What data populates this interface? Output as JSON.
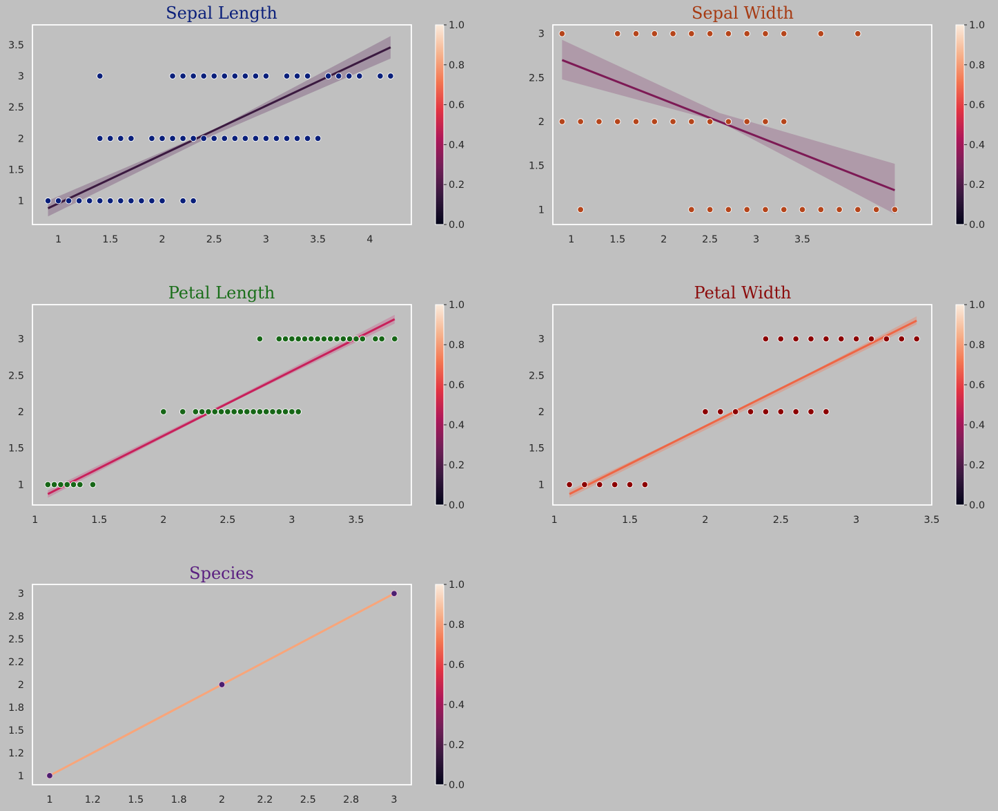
{
  "colors": {
    "background": "#c0c0c0",
    "axes_frame": "#ffffff",
    "colormap": "rocket",
    "colormap_stops": [
      "#03051a",
      "#36193e",
      "#701f57",
      "#ad1759",
      "#e13342",
      "#f37651",
      "#f6b48f",
      "#faebdd"
    ]
  },
  "chart_data": [
    {
      "type": "scatter",
      "title": "Sepal Length",
      "title_color": "#0a1f7a",
      "point_color": "#0a1f7a",
      "line_color": "#3b1a40",
      "band_color": "#8a6e8a",
      "xlim": [
        0.75,
        4.4
      ],
      "ylim": [
        0.62,
        3.82
      ],
      "xticks": [
        1,
        1.5,
        2,
        2.5,
        3,
        3.5,
        4
      ],
      "xtick_labels": [
        "1",
        "1.5",
        "2",
        "2.5",
        "3",
        "3.5",
        "4"
      ],
      "yticks": [
        1,
        1.5,
        2,
        2.5,
        3,
        3.5
      ],
      "ytick_labels": [
        "1",
        "1.5",
        "2",
        "2.5",
        "3",
        "3.5"
      ],
      "points": [
        [
          0.9,
          1
        ],
        [
          1.0,
          1
        ],
        [
          1.1,
          1
        ],
        [
          1.2,
          1
        ],
        [
          1.3,
          1
        ],
        [
          1.4,
          1
        ],
        [
          1.5,
          1
        ],
        [
          1.6,
          1
        ],
        [
          1.7,
          1
        ],
        [
          1.8,
          1
        ],
        [
          1.9,
          1
        ],
        [
          2.0,
          1
        ],
        [
          2.2,
          1
        ],
        [
          2.3,
          1
        ],
        [
          1.4,
          2
        ],
        [
          1.5,
          2
        ],
        [
          1.6,
          2
        ],
        [
          1.7,
          2
        ],
        [
          1.9,
          2
        ],
        [
          2.0,
          2
        ],
        [
          2.1,
          2
        ],
        [
          2.2,
          2
        ],
        [
          2.3,
          2
        ],
        [
          2.4,
          2
        ],
        [
          2.5,
          2
        ],
        [
          2.6,
          2
        ],
        [
          2.7,
          2
        ],
        [
          2.8,
          2
        ],
        [
          2.9,
          2
        ],
        [
          3.0,
          2
        ],
        [
          3.1,
          2
        ],
        [
          3.2,
          2
        ],
        [
          3.3,
          2
        ],
        [
          3.4,
          2
        ],
        [
          3.5,
          2
        ],
        [
          1.4,
          3
        ],
        [
          2.1,
          3
        ],
        [
          2.2,
          3
        ],
        [
          2.3,
          3
        ],
        [
          2.4,
          3
        ],
        [
          2.5,
          3
        ],
        [
          2.6,
          3
        ],
        [
          2.7,
          3
        ],
        [
          2.8,
          3
        ],
        [
          2.9,
          3
        ],
        [
          3.0,
          3
        ],
        [
          3.2,
          3
        ],
        [
          3.3,
          3
        ],
        [
          3.4,
          3
        ],
        [
          3.6,
          3
        ],
        [
          3.7,
          3
        ],
        [
          3.8,
          3
        ],
        [
          3.9,
          3
        ],
        [
          4.1,
          3
        ],
        [
          4.2,
          3
        ]
      ],
      "fit_line": [
        [
          0.9,
          0.88
        ],
        [
          4.2,
          3.46
        ]
      ],
      "band": {
        "lower": [
          [
            0.9,
            0.75
          ],
          [
            2.5,
            2.06
          ],
          [
            4.2,
            3.28
          ]
        ],
        "upper": [
          [
            0.9,
            1.0
          ],
          [
            2.5,
            2.14
          ],
          [
            4.2,
            3.64
          ]
        ]
      },
      "colorbar": {
        "range": [
          0,
          1
        ],
        "ticks": [
          "0.0",
          "0.2",
          "0.4",
          "0.6",
          "0.8",
          "1.0"
        ]
      }
    },
    {
      "type": "scatter",
      "title": "Sepal Width",
      "title_color": "#a63a12",
      "point_color": "#b5451b",
      "line_color": "#7d1a55",
      "band_color": "#a07a96",
      "xlim": [
        0.8,
        4.9
      ],
      "ylim": [
        0.83,
        3.1
      ],
      "xticks": [
        1,
        1.5,
        2,
        2.5,
        3,
        3.5
      ],
      "xtick_labels": [
        "1",
        "1.5",
        "2",
        "2.5",
        "3",
        "3.5"
      ],
      "yticks": [
        1,
        1.5,
        2,
        2.5,
        3
      ],
      "ytick_labels": [
        "1",
        "1.5",
        "2",
        "2.5",
        "3"
      ],
      "points": [
        [
          0.9,
          3
        ],
        [
          1.5,
          3
        ],
        [
          1.7,
          3
        ],
        [
          1.9,
          3
        ],
        [
          2.1,
          3
        ],
        [
          2.3,
          3
        ],
        [
          2.5,
          3
        ],
        [
          2.7,
          3
        ],
        [
          2.9,
          3
        ],
        [
          3.1,
          3
        ],
        [
          3.3,
          3
        ],
        [
          3.7,
          3
        ],
        [
          4.1,
          3
        ],
        [
          0.9,
          2
        ],
        [
          1.1,
          2
        ],
        [
          1.3,
          2
        ],
        [
          1.5,
          2
        ],
        [
          1.7,
          2
        ],
        [
          1.9,
          2
        ],
        [
          2.1,
          2
        ],
        [
          2.3,
          2
        ],
        [
          2.5,
          2
        ],
        [
          2.7,
          2
        ],
        [
          2.9,
          2
        ],
        [
          3.1,
          2
        ],
        [
          3.3,
          2
        ],
        [
          1.1,
          1
        ],
        [
          2.3,
          1
        ],
        [
          2.5,
          1
        ],
        [
          2.7,
          1
        ],
        [
          2.9,
          1
        ],
        [
          3.1,
          1
        ],
        [
          3.3,
          1
        ],
        [
          3.5,
          1
        ],
        [
          3.7,
          1
        ],
        [
          3.9,
          1
        ],
        [
          4.1,
          1
        ],
        [
          4.3,
          1
        ],
        [
          4.5,
          1
        ]
      ],
      "fit_line": [
        [
          0.9,
          2.7
        ],
        [
          4.5,
          1.22
        ]
      ],
      "band": {
        "lower": [
          [
            0.9,
            2.48
          ],
          [
            2.6,
            2.0
          ],
          [
            4.5,
            0.95
          ]
        ],
        "upper": [
          [
            0.9,
            2.93
          ],
          [
            2.6,
            2.1
          ],
          [
            4.5,
            1.52
          ]
        ]
      },
      "colorbar": {
        "range": [
          0,
          1
        ],
        "ticks": [
          "0.0",
          "0.2",
          "0.4",
          "0.6",
          "0.8",
          "1.0"
        ]
      }
    },
    {
      "type": "scatter",
      "title": "Petal Length",
      "title_color": "#1a6e1a",
      "point_color": "#176617",
      "line_color": "#c8205a",
      "band_color": "#c9789a",
      "xlim": [
        0.98,
        3.93
      ],
      "ylim": [
        0.72,
        3.47
      ],
      "xticks": [
        1,
        1.5,
        2,
        2.5,
        3,
        3.5
      ],
      "xtick_labels": [
        "1",
        "1.5",
        "2",
        "2.5",
        "3",
        "3.5"
      ],
      "yticks": [
        1,
        1.5,
        2,
        2.5,
        3
      ],
      "ytick_labels": [
        "1",
        "1.5",
        "2",
        "2.5",
        "3"
      ],
      "points": [
        [
          1.1,
          1
        ],
        [
          1.15,
          1
        ],
        [
          1.2,
          1
        ],
        [
          1.25,
          1
        ],
        [
          1.3,
          1
        ],
        [
          1.35,
          1
        ],
        [
          1.45,
          1
        ],
        [
          2.0,
          2
        ],
        [
          2.15,
          2
        ],
        [
          2.25,
          2
        ],
        [
          2.3,
          2
        ],
        [
          2.35,
          2
        ],
        [
          2.4,
          2
        ],
        [
          2.45,
          2
        ],
        [
          2.5,
          2
        ],
        [
          2.55,
          2
        ],
        [
          2.6,
          2
        ],
        [
          2.65,
          2
        ],
        [
          2.7,
          2
        ],
        [
          2.75,
          2
        ],
        [
          2.8,
          2
        ],
        [
          2.85,
          2
        ],
        [
          2.9,
          2
        ],
        [
          2.95,
          2
        ],
        [
          3.0,
          2
        ],
        [
          3.05,
          2
        ],
        [
          2.75,
          3
        ],
        [
          2.9,
          3
        ],
        [
          2.95,
          3
        ],
        [
          3.0,
          3
        ],
        [
          3.05,
          3
        ],
        [
          3.1,
          3
        ],
        [
          3.15,
          3
        ],
        [
          3.2,
          3
        ],
        [
          3.25,
          3
        ],
        [
          3.3,
          3
        ],
        [
          3.35,
          3
        ],
        [
          3.4,
          3
        ],
        [
          3.45,
          3
        ],
        [
          3.5,
          3
        ],
        [
          3.55,
          3
        ],
        [
          3.65,
          3
        ],
        [
          3.7,
          3
        ],
        [
          3.8,
          3
        ]
      ],
      "fit_line": [
        [
          1.1,
          0.87
        ],
        [
          3.8,
          3.27
        ]
      ],
      "band": {
        "lower": [
          [
            1.1,
            0.82
          ],
          [
            2.5,
            2.1
          ],
          [
            3.8,
            3.21
          ]
        ],
        "upper": [
          [
            1.1,
            0.92
          ],
          [
            2.5,
            2.14
          ],
          [
            3.8,
            3.33
          ]
        ]
      },
      "colorbar": {
        "range": [
          0,
          1
        ],
        "ticks": [
          "0.0",
          "0.2",
          "0.4",
          "0.6",
          "0.8",
          "1.0"
        ]
      }
    },
    {
      "type": "scatter",
      "title": "Petal Width",
      "title_color": "#8b0c0c",
      "point_color": "#8b0000",
      "line_color": "#ee6645",
      "band_color": "#e0917e",
      "xlim": [
        0.99,
        3.5
      ],
      "ylim": [
        0.72,
        3.47
      ],
      "xticks": [
        1,
        1.5,
        2,
        2.5,
        3,
        3.5
      ],
      "xtick_labels": [
        "1",
        "1.5",
        "2",
        "2.5",
        "3",
        "3.5"
      ],
      "yticks": [
        1,
        1.5,
        2,
        2.5,
        3
      ],
      "ytick_labels": [
        "1",
        "1.5",
        "2",
        "2.5",
        "3"
      ],
      "points": [
        [
          1.1,
          1
        ],
        [
          1.2,
          1
        ],
        [
          1.3,
          1
        ],
        [
          1.4,
          1
        ],
        [
          1.5,
          1
        ],
        [
          1.6,
          1
        ],
        [
          2.0,
          2
        ],
        [
          2.1,
          2
        ],
        [
          2.2,
          2
        ],
        [
          2.3,
          2
        ],
        [
          2.4,
          2
        ],
        [
          2.5,
          2
        ],
        [
          2.6,
          2
        ],
        [
          2.7,
          2
        ],
        [
          2.8,
          2
        ],
        [
          2.4,
          3
        ],
        [
          2.5,
          3
        ],
        [
          2.6,
          3
        ],
        [
          2.7,
          3
        ],
        [
          2.8,
          3
        ],
        [
          2.9,
          3
        ],
        [
          3.0,
          3
        ],
        [
          3.1,
          3
        ],
        [
          3.2,
          3
        ],
        [
          3.3,
          3
        ],
        [
          3.4,
          3
        ]
      ],
      "fit_line": [
        [
          1.1,
          0.87
        ],
        [
          3.4,
          3.25
        ]
      ],
      "band": {
        "lower": [
          [
            1.1,
            0.82
          ],
          [
            2.3,
            2.06
          ],
          [
            3.4,
            3.2
          ]
        ],
        "upper": [
          [
            1.1,
            0.92
          ],
          [
            2.3,
            2.1
          ],
          [
            3.4,
            3.31
          ]
        ]
      },
      "colorbar": {
        "range": [
          0,
          1
        ],
        "ticks": [
          "0.0",
          "0.2",
          "0.4",
          "0.6",
          "0.8",
          "1.0"
        ]
      }
    },
    {
      "type": "scatter",
      "title": "Species",
      "title_color": "#5a1f80",
      "point_color": "#4b1f70",
      "point_edge": "#f0c0d8",
      "line_color": "#f8a57a",
      "band_color": "#f8c8ac",
      "xlim": [
        0.9,
        3.1
      ],
      "ylim": [
        0.9,
        3.1
      ],
      "xticks": [
        1,
        1.25,
        1.5,
        1.75,
        2,
        2.25,
        2.5,
        2.75,
        3
      ],
      "xtick_labels": [
        "1",
        "1.2",
        "1.5",
        "1.8",
        "2",
        "2.2",
        "2.5",
        "2.8",
        "3"
      ],
      "yticks": [
        1,
        1.25,
        1.5,
        1.75,
        2,
        2.25,
        2.5,
        2.75,
        3
      ],
      "ytick_labels": [
        "1",
        "1.2",
        "1.5",
        "1.8",
        "2",
        "2.2",
        "2.5",
        "2.8",
        "3"
      ],
      "points": [
        [
          1,
          1
        ],
        [
          2,
          2
        ],
        [
          3,
          3
        ]
      ],
      "fit_line": [
        [
          1,
          1
        ],
        [
          3,
          3
        ]
      ],
      "band": {
        "lower": [
          [
            1,
            1
          ],
          [
            3,
            3
          ]
        ],
        "upper": [
          [
            1,
            1
          ],
          [
            3,
            3
          ]
        ]
      },
      "colorbar": {
        "range": [
          0,
          1
        ],
        "ticks": [
          "0.0",
          "0.2",
          "0.4",
          "0.6",
          "0.8",
          "1.0"
        ]
      }
    }
  ]
}
